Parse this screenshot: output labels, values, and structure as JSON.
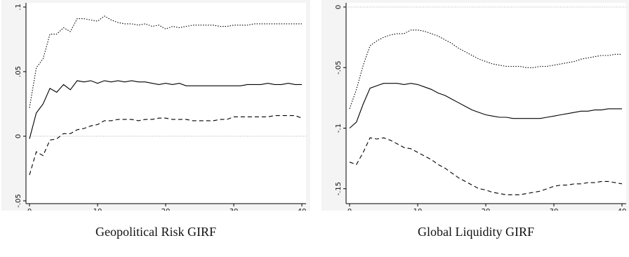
{
  "chart_data": [
    {
      "type": "line",
      "title": "Geopolitical Risk GIRF",
      "xlabel": "",
      "ylabel": "",
      "xlim": [
        0,
        40
      ],
      "ylim": [
        -0.05,
        0.1
      ],
      "xticks": [
        0,
        10,
        20,
        30,
        40
      ],
      "xtick_labels": [
        "0",
        "10",
        "20",
        "30",
        "40"
      ],
      "yticks": [
        -0.05,
        0,
        0.05,
        0.1
      ],
      "ytick_labels": [
        "-.05",
        "0",
        ".05",
        ".1"
      ],
      "zero_line": true,
      "grid": false,
      "legend": "none",
      "x": [
        0,
        1,
        2,
        3,
        4,
        5,
        6,
        7,
        8,
        9,
        10,
        11,
        12,
        13,
        14,
        15,
        16,
        17,
        18,
        19,
        20,
        21,
        22,
        23,
        24,
        25,
        26,
        27,
        28,
        29,
        30,
        31,
        32,
        33,
        34,
        35,
        36,
        37,
        38,
        39,
        40
      ],
      "series": [
        {
          "style": "dotted",
          "values": [
            0.022,
            0.053,
            0.06,
            0.079,
            0.079,
            0.084,
            0.081,
            0.091,
            0.091,
            0.09,
            0.089,
            0.093,
            0.09,
            0.088,
            0.087,
            0.087,
            0.086,
            0.087,
            0.085,
            0.086,
            0.083,
            0.085,
            0.084,
            0.085,
            0.086,
            0.086,
            0.086,
            0.086,
            0.085,
            0.085,
            0.086,
            0.086,
            0.086,
            0.087,
            0.087,
            0.087,
            0.087,
            0.087,
            0.087,
            0.087,
            0.087
          ]
        },
        {
          "style": "solid",
          "values": [
            -0.002,
            0.018,
            0.025,
            0.037,
            0.034,
            0.04,
            0.036,
            0.043,
            0.042,
            0.043,
            0.041,
            0.043,
            0.042,
            0.043,
            0.042,
            0.043,
            0.042,
            0.042,
            0.041,
            0.04,
            0.041,
            0.04,
            0.041,
            0.039,
            0.039,
            0.039,
            0.039,
            0.039,
            0.039,
            0.039,
            0.039,
            0.039,
            0.04,
            0.04,
            0.04,
            0.041,
            0.04,
            0.04,
            0.041,
            0.04,
            0.04
          ]
        },
        {
          "style": "dashed",
          "values": [
            -0.03,
            -0.012,
            -0.015,
            -0.003,
            -0.002,
            0.002,
            0.002,
            0.005,
            0.006,
            0.008,
            0.009,
            0.012,
            0.012,
            0.013,
            0.013,
            0.013,
            0.012,
            0.013,
            0.013,
            0.014,
            0.014,
            0.013,
            0.013,
            0.013,
            0.012,
            0.012,
            0.012,
            0.012,
            0.013,
            0.013,
            0.015,
            0.015,
            0.015,
            0.015,
            0.015,
            0.015,
            0.016,
            0.016,
            0.016,
            0.016,
            0.014
          ]
        }
      ]
    },
    {
      "type": "line",
      "title": "Global Liquidity GIRF",
      "xlabel": "",
      "ylabel": "",
      "xlim": [
        0,
        40
      ],
      "ylim": [
        -0.16,
        0.0
      ],
      "xticks": [
        0,
        10,
        20,
        30,
        40
      ],
      "xtick_labels": [
        "0",
        "10",
        "20",
        "30",
        "40"
      ],
      "yticks": [
        -0.15,
        -0.1,
        -0.05,
        0
      ],
      "ytick_labels": [
        "-.15",
        "-.1",
        "-.05",
        "0"
      ],
      "zero_line": true,
      "grid": false,
      "legend": "none",
      "x": [
        0,
        1,
        2,
        3,
        4,
        5,
        6,
        7,
        8,
        9,
        10,
        11,
        12,
        13,
        14,
        15,
        16,
        17,
        18,
        19,
        20,
        21,
        22,
        23,
        24,
        25,
        26,
        27,
        28,
        29,
        30,
        31,
        32,
        33,
        34,
        35,
        36,
        37,
        38,
        39,
        40
      ],
      "series": [
        {
          "style": "dotted",
          "values": [
            -0.084,
            -0.068,
            -0.048,
            -0.032,
            -0.028,
            -0.025,
            -0.023,
            -0.022,
            -0.022,
            -0.019,
            -0.019,
            -0.02,
            -0.022,
            -0.024,
            -0.027,
            -0.03,
            -0.034,
            -0.037,
            -0.04,
            -0.043,
            -0.045,
            -0.047,
            -0.048,
            -0.049,
            -0.049,
            -0.049,
            -0.05,
            -0.05,
            -0.049,
            -0.049,
            -0.048,
            -0.047,
            -0.046,
            -0.045,
            -0.043,
            -0.042,
            -0.041,
            -0.04,
            -0.04,
            -0.039,
            -0.039
          ]
        },
        {
          "style": "solid",
          "values": [
            -0.1,
            -0.095,
            -0.08,
            -0.067,
            -0.065,
            -0.063,
            -0.063,
            -0.063,
            -0.064,
            -0.063,
            -0.064,
            -0.066,
            -0.068,
            -0.071,
            -0.073,
            -0.076,
            -0.079,
            -0.082,
            -0.085,
            -0.087,
            -0.089,
            -0.09,
            -0.091,
            -0.091,
            -0.092,
            -0.092,
            -0.092,
            -0.092,
            -0.092,
            -0.091,
            -0.09,
            -0.089,
            -0.088,
            -0.087,
            -0.086,
            -0.086,
            -0.085,
            -0.085,
            -0.084,
            -0.084,
            -0.084
          ]
        },
        {
          "style": "dashed",
          "values": [
            -0.128,
            -0.13,
            -0.12,
            -0.108,
            -0.109,
            -0.108,
            -0.11,
            -0.113,
            -0.116,
            -0.117,
            -0.12,
            -0.123,
            -0.126,
            -0.13,
            -0.133,
            -0.137,
            -0.141,
            -0.144,
            -0.147,
            -0.15,
            -0.151,
            -0.153,
            -0.154,
            -0.155,
            -0.155,
            -0.155,
            -0.154,
            -0.153,
            -0.152,
            -0.15,
            -0.148,
            -0.147,
            -0.147,
            -0.146,
            -0.146,
            -0.145,
            -0.145,
            -0.144,
            -0.144,
            -0.145,
            -0.146
          ]
        }
      ]
    }
  ]
}
